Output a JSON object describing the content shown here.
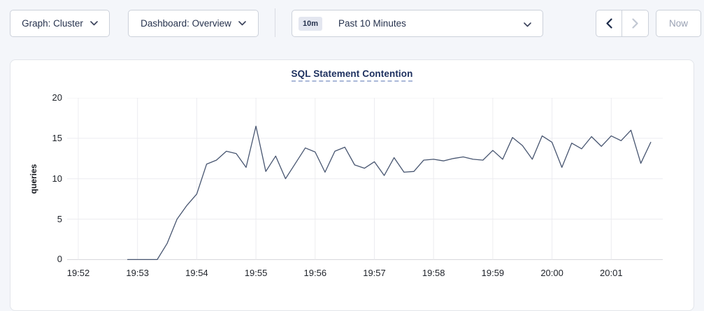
{
  "toolbar": {
    "graph_dropdown_label": "Graph: Cluster",
    "dashboard_dropdown_label": "Dashboard: Overview",
    "time_badge": "10m",
    "time_label": "Past 10 Minutes",
    "now_label": "Now"
  },
  "chart_data": {
    "type": "line",
    "title": "SQL Statement Contention",
    "xlabel": "",
    "ylabel": "queries",
    "ylim": [
      0,
      20
    ],
    "yticks": [
      0,
      5,
      10,
      15,
      20
    ],
    "xticks": [
      "19:52",
      "19:53",
      "19:54",
      "19:55",
      "19:56",
      "19:57",
      "19:58",
      "19:59",
      "20:00",
      "20:01"
    ],
    "grid": true,
    "legend": "none",
    "series": [
      {
        "name": "queries",
        "start_time": "19:52:50",
        "interval_seconds": 10,
        "values": [
          0,
          0,
          0,
          0,
          2.0,
          5.0,
          6.7,
          8.1,
          11.8,
          12.3,
          13.4,
          13.1,
          11.4,
          16.5,
          10.9,
          12.8,
          10.0,
          11.9,
          13.8,
          13.3,
          10.8,
          13.4,
          13.9,
          11.7,
          11.3,
          12.1,
          10.4,
          12.6,
          10.8,
          10.9,
          12.3,
          12.4,
          12.2,
          12.5,
          12.7,
          12.4,
          12.3,
          13.5,
          12.4,
          15.1,
          14.1,
          12.4,
          15.3,
          14.5,
          11.4,
          14.4,
          13.7,
          15.2,
          14.0,
          15.3,
          14.7,
          16.0,
          11.9,
          14.5
        ]
      }
    ]
  },
  "colors": {
    "page_background": "#f4f6fa",
    "panel_background": "#ffffff",
    "series_line": "#475570",
    "grid_line": "#ececf0",
    "axis_line": "#d4d5d9",
    "title_text": "#1c2f5e",
    "title_underline": "#aab8d8",
    "button_text": "#26324d",
    "disabled_text": "#99a1b3",
    "prev_arrow": "#1c2b4a",
    "next_arrow": "#c2c8d3"
  }
}
